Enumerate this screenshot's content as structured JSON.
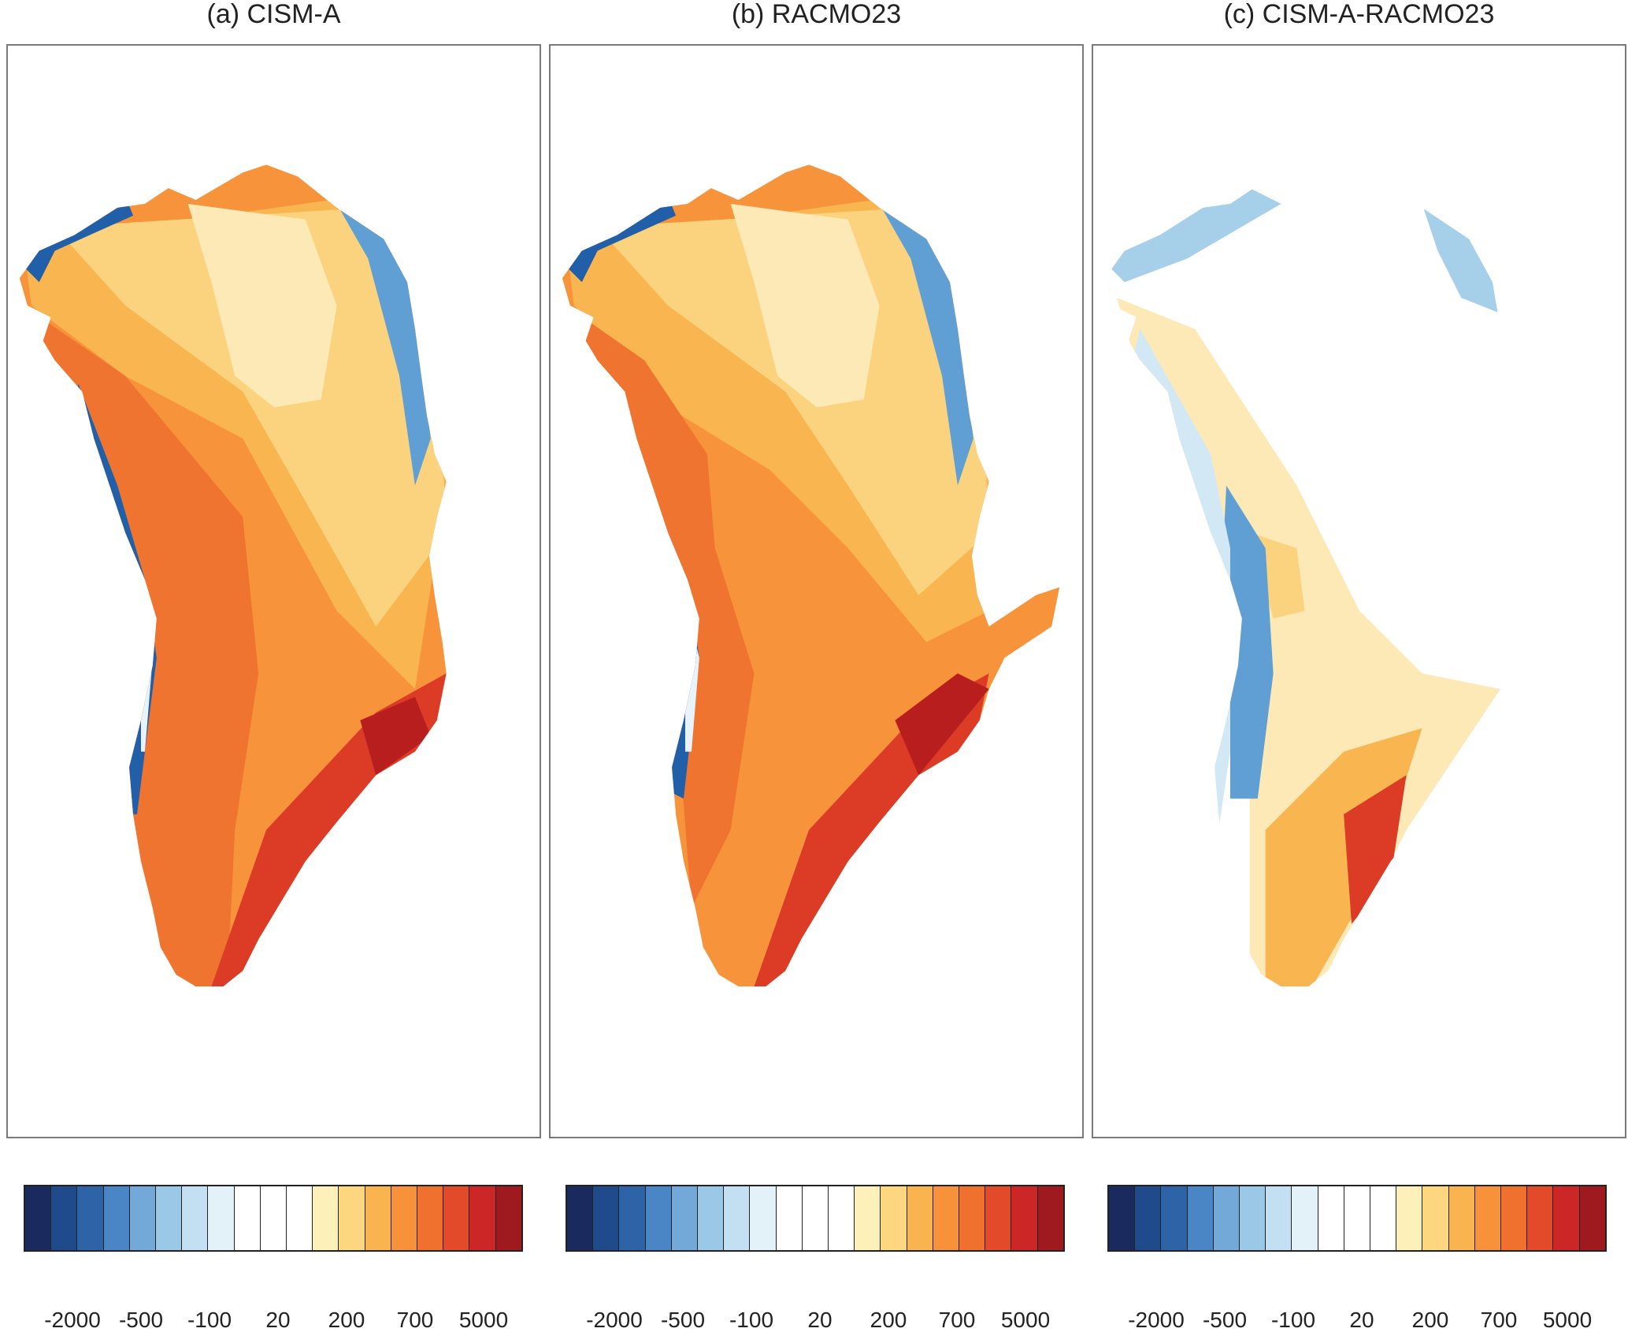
{
  "panels": [
    {
      "title": "(a) CISM-A"
    },
    {
      "title": "(b) RACMO23"
    },
    {
      "title": "(c) CISM-A-RACMO23"
    }
  ],
  "colorbar": {
    "colors": [
      "#1a2a5e",
      "#1f4a8c",
      "#2e63a8",
      "#4a86c5",
      "#72a9d9",
      "#9cc8e8",
      "#c2e0f2",
      "#e3f2f9",
      "#ffffff",
      "#ffffff",
      "#ffffff",
      "#fdf0b8",
      "#fcd77f",
      "#fab44f",
      "#f8923a",
      "#f0702e",
      "#e24a29",
      "#cc2626",
      "#9e1a1e"
    ],
    "tick_labels": [
      "-2000",
      "-500",
      "-100",
      "20",
      "200",
      "700",
      "5000"
    ]
  },
  "map_palette": {
    "deep_blue": "#2160a8",
    "mid_blue": "#5f9fd4",
    "light_blue": "#a6cfe9",
    "pale_blue": "#d3e8f5",
    "pale_yellow": "#fde9b6",
    "yellow": "#fbd37e",
    "light_orange": "#f9b550",
    "orange": "#f7933b",
    "dark_orange": "#ef7430",
    "red": "#dc3b26",
    "dark_red": "#b81e1e"
  }
}
